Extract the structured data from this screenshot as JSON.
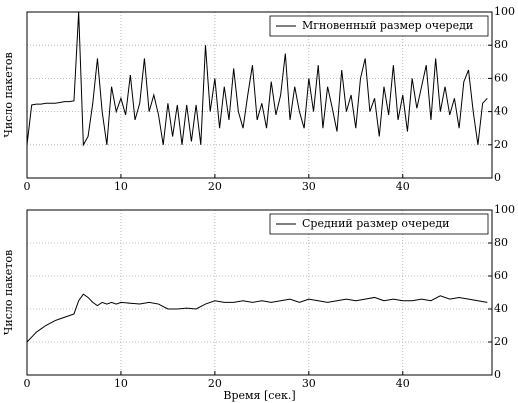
{
  "chart_data": [
    {
      "type": "line",
      "ylabel": "Число пакетов",
      "x": [
        0,
        0.5,
        1,
        1.5,
        2,
        2.5,
        3,
        3.5,
        4,
        4.5,
        5,
        5.5,
        6,
        6.5,
        7,
        7.5,
        8,
        8.5,
        9,
        9.5,
        10,
        10.5,
        11,
        11.5,
        12,
        12.5,
        13,
        13.5,
        14,
        14.5,
        15,
        15.5,
        16,
        16.5,
        17,
        17.5,
        18,
        18.5,
        19,
        19.5,
        20,
        20.5,
        21,
        21.5,
        22,
        22.5,
        23,
        23.5,
        24,
        24.5,
        25,
        25.5,
        26,
        26.5,
        27,
        27.5,
        28,
        28.5,
        29,
        29.5,
        30,
        30.5,
        31,
        31.5,
        32,
        32.5,
        33,
        33.5,
        34,
        34.5,
        35,
        35.5,
        36,
        36.5,
        37,
        37.5,
        38,
        38.5,
        39,
        39.5,
        40,
        40.5,
        41,
        41.5,
        42,
        42.5,
        43,
        43.5,
        44,
        44.5,
        45,
        45.5,
        46,
        46.5,
        47,
        47.5,
        48,
        48.5,
        49
      ],
      "series": [
        {
          "name": "Мгновенный размер очереди",
          "color": "#000000",
          "values": [
            20,
            44,
            44.5,
            44.5,
            45,
            45,
            45,
            45.5,
            46,
            46,
            46.5,
            100,
            20,
            25,
            45,
            72,
            40,
            20,
            55,
            40,
            48,
            38,
            62,
            35,
            45,
            72,
            40,
            50,
            38,
            20,
            45,
            25,
            44,
            20,
            44,
            22,
            44,
            20,
            80,
            40,
            60,
            30,
            55,
            35,
            66,
            40,
            30,
            50,
            68,
            35,
            45,
            30,
            58,
            38,
            50,
            75,
            35,
            55,
            40,
            30,
            60,
            40,
            68,
            30,
            55,
            42,
            28,
            65,
            40,
            50,
            30,
            60,
            72,
            40,
            48,
            25,
            55,
            38,
            68,
            35,
            50,
            28,
            60,
            42,
            55,
            68,
            35,
            72,
            40,
            55,
            38,
            48,
            30,
            58,
            65,
            40,
            20,
            45,
            48
          ]
        }
      ],
      "xlim": [
        0,
        49.5
      ],
      "ylim": [
        0,
        100
      ],
      "xticks": [
        0,
        10,
        20,
        30,
        40
      ],
      "yticks": [
        0,
        20,
        40,
        60,
        80,
        100
      ],
      "grid": true,
      "legend": "upper right"
    },
    {
      "type": "line",
      "ylabel": "Число пакетов",
      "xlabel": "Время [сек.]",
      "x": [
        0,
        0.5,
        1,
        1.5,
        2,
        2.5,
        3,
        3.5,
        4,
        4.5,
        5,
        5.5,
        6,
        6.5,
        7,
        7.5,
        8,
        8.5,
        9,
        9.5,
        10,
        11,
        12,
        13,
        14,
        15,
        16,
        17,
        18,
        19,
        20,
        21,
        22,
        23,
        24,
        25,
        26,
        27,
        28,
        29,
        30,
        31,
        32,
        33,
        34,
        35,
        36,
        37,
        38,
        39,
        40,
        41,
        42,
        43,
        44,
        45,
        46,
        47,
        48,
        49
      ],
      "series": [
        {
          "name": "Средний размер очереди",
          "color": "#000000",
          "values": [
            20,
            23,
            26,
            28,
            30,
            31.5,
            33,
            34,
            35,
            36,
            37,
            45,
            49,
            47,
            44,
            42,
            44,
            43,
            44,
            43,
            44,
            43.5,
            43,
            44,
            43,
            40,
            40,
            40.5,
            40,
            43,
            45,
            44,
            44,
            45,
            44,
            45,
            44,
            45,
            46,
            44,
            46,
            45,
            44,
            45,
            46,
            45,
            46,
            47,
            45,
            46,
            45,
            45,
            46,
            45,
            48,
            46,
            47,
            46,
            45,
            44
          ]
        }
      ],
      "xlim": [
        0,
        49.5
      ],
      "ylim": [
        0,
        100
      ],
      "xticks": [
        0,
        10,
        20,
        30,
        40
      ],
      "yticks": [
        0,
        20,
        40,
        60,
        80,
        100
      ],
      "grid": true,
      "legend": "upper right"
    }
  ]
}
